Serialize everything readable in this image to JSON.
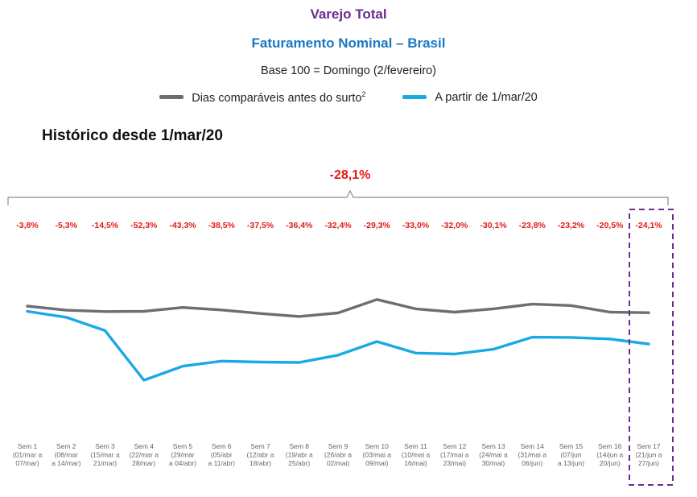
{
  "chart_data": {
    "type": "line",
    "title": "Varejo Total",
    "subtitle": "Faturamento Nominal – Brasil",
    "base_note": "Base 100 = Domingo (2/fevereiro)",
    "section_title": "Histórico desde 1/mar/20",
    "total_label": "-28,1%",
    "categories": [
      [
        "Sem 1",
        "(01/mar a",
        "07/mar)"
      ],
      [
        "Sem 2",
        "(08/mar",
        "a 14/mar)"
      ],
      [
        "Sem 3",
        "(15/mar a",
        "21/mar)"
      ],
      [
        "Sem 4",
        "(22/mar a",
        "28/mar)"
      ],
      [
        "Sem 5",
        "(29/mar",
        "a 04/abr)"
      ],
      [
        "Sem 6",
        "(05/abr",
        "a 11/abr)"
      ],
      [
        "Sem 7",
        "(12/abr a",
        "18/abr)"
      ],
      [
        "Sem 8",
        "(19/abr a",
        "25/abr)"
      ],
      [
        "Sem 9",
        "(26/abr a",
        "02/mai)"
      ],
      [
        "Sem 10",
        "(03/mai a",
        "09/mai)"
      ],
      [
        "Sem 11",
        "(10/mai a",
        "16/mai)"
      ],
      [
        "Sem 12",
        "(17/mai a",
        "23/mai)"
      ],
      [
        "Sem 13",
        "(24/mai a",
        "30/mai)"
      ],
      [
        "Sem 14",
        "(31/mai a",
        "06/jun)"
      ],
      [
        "Sem 15",
        "(07/jun",
        "a 13/jun)"
      ],
      [
        "Sem 16",
        "(14/jun a",
        "20/jun)"
      ],
      [
        "Sem 17",
        "(21/jun a",
        "27/jun)"
      ]
    ],
    "labels": [
      "-3,8%",
      "-5,3%",
      "-14,5%",
      "-52,3%",
      "-43,3%",
      "-38,5%",
      "-37,5%",
      "-36,4%",
      "-32,4%",
      "-29,3%",
      "-33,0%",
      "-32,0%",
      "-30,1%",
      "-23,8%",
      "-23,2%",
      "-20,5%",
      "-24,1%"
    ],
    "series": [
      {
        "name": "Dias comparáveis antes do surto",
        "name_superscript": "2",
        "color": "#6d6e71",
        "values": [
          100,
          97,
          96,
          96.2,
          99,
          97.2,
          94.6,
          92.4,
          95,
          104.8,
          98,
          95.6,
          98,
          101.4,
          100.4,
          95.6,
          95.2
        ]
      },
      {
        "name": "A partir de 1/mar/20",
        "color": "#1aa9e6",
        "values": [
          96.2,
          91.8,
          82.1,
          45.9,
          56.1,
          59.8,
          59.1,
          58.8,
          64.2,
          74.1,
          65.7,
          65,
          68.5,
          77.3,
          77.1,
          76,
          72.3
        ]
      }
    ],
    "highlight": {
      "category": "Sem 17",
      "color": "#6a2c91"
    },
    "bracket_color": "#8c8c8c"
  }
}
